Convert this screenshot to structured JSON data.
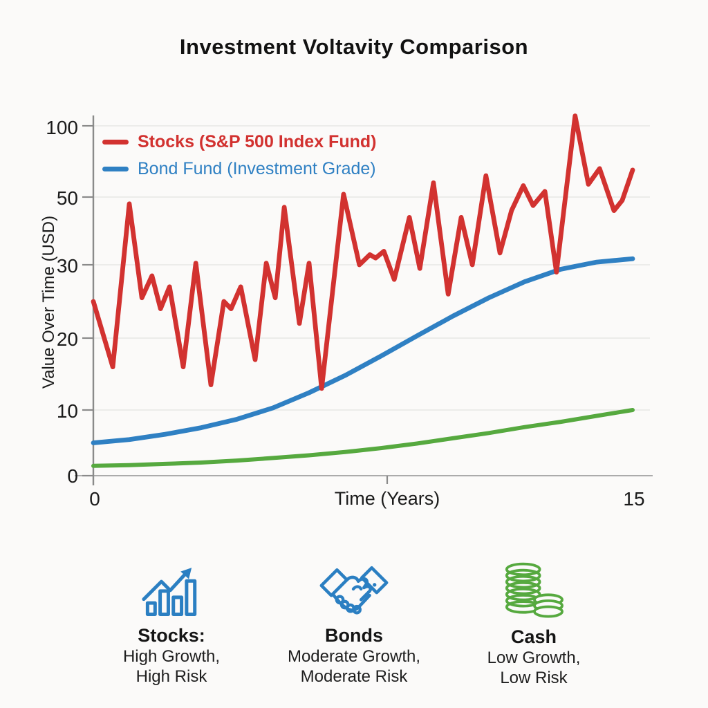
{
  "title": "Investment Voltavity Comparison",
  "chart_data": {
    "type": "line",
    "title": "Investment Voltavity Comparison",
    "xlabel": "Time (Years)",
    "ylabel": "Value Over Time (USD)",
    "xlim": [
      0,
      15
    ],
    "xtick_labels": [
      "0",
      "15"
    ],
    "ytick_values": [
      0,
      10,
      20,
      30,
      50,
      100
    ],
    "ytick_labels": [
      "100",
      "50",
      "30",
      "20",
      "10",
      "0"
    ],
    "axis_note": "y-axis ticks 0,10,20,30,50,100 are drawn at even spacing (non-linear scale as rendered)",
    "grid": true,
    "legend_position": "top-left",
    "legend": [
      "Stocks (S&P 500 Index Fund)",
      "Bond Fund (Investment Grade)"
    ],
    "series": [
      {
        "name": "Stocks (S&P 500 Index Fund)",
        "color": "#d23230",
        "x": [
          0,
          0.54,
          1.0,
          1.35,
          1.63,
          1.87,
          2.12,
          2.5,
          2.85,
          3.27,
          3.63,
          3.83,
          4.1,
          4.5,
          4.81,
          5.06,
          5.31,
          5.73,
          6.0,
          6.35,
          6.96,
          7.4,
          7.69,
          7.85,
          8.08,
          8.37,
          8.79,
          9.08,
          9.46,
          9.87,
          10.23,
          10.54,
          10.92,
          11.31,
          11.63,
          11.96,
          12.23,
          12.56,
          12.88,
          13.4,
          13.77,
          14.08,
          14.48,
          14.71,
          15.0
        ],
        "y": [
          25,
          16,
          48,
          25.5,
          28.5,
          24,
          27,
          16,
          30.5,
          13.5,
          25,
          24,
          27,
          17,
          30.5,
          25.5,
          47,
          22,
          30.5,
          13,
          52,
          30,
          33,
          32,
          34,
          28,
          44,
          29.5,
          60,
          26,
          44,
          30,
          65,
          33.5,
          46,
          58,
          47.5,
          54,
          29,
          107,
          59,
          70,
          46,
          49,
          69
        ]
      },
      {
        "name": "Bond Fund (Investment Grade)",
        "color": "#2f80c3",
        "x": [
          0,
          1,
          2,
          3,
          4,
          5,
          6,
          7,
          8,
          9,
          10,
          11,
          12,
          13,
          14,
          15
        ],
        "y": [
          5.0,
          5.5,
          6.3,
          7.3,
          8.6,
          10.3,
          12.4,
          14.8,
          17.5,
          20.3,
          23.0,
          25.5,
          27.7,
          29.4,
          30.8,
          31.8
        ]
      },
      {
        "name": "Cash (unlabeled green line)",
        "color": "#56a93f",
        "x": [
          0,
          1,
          2,
          3,
          4,
          5,
          6,
          7,
          8,
          9,
          10,
          11,
          12,
          13,
          14,
          15
        ],
        "y": [
          1.5,
          1.6,
          1.8,
          2.0,
          2.3,
          2.7,
          3.1,
          3.6,
          4.2,
          4.9,
          5.7,
          6.5,
          7.4,
          8.2,
          9.1,
          10.0
        ]
      }
    ]
  },
  "cards": [
    {
      "icon": "bar-chart-trend-icon",
      "color": "#2b7fc2",
      "name": "Stocks:",
      "line1": "High Growth,",
      "line2": "High Risk"
    },
    {
      "icon": "handshake-icon",
      "color": "#2b7fc2",
      "name": "Bonds",
      "line1": "Moderate Growth,",
      "line2": "Moderate Risk"
    },
    {
      "icon": "coin-stack-icon",
      "color": "#56a93f",
      "name": "Cash",
      "line1": "Low Growth,",
      "line2": "Low Risk"
    }
  ],
  "colors": {
    "stocks_red": "#d23230",
    "bonds_blue": "#2f80c3",
    "cash_green": "#56a93f",
    "axis_gray": "#8a8a8a",
    "grid_gray": "#e8e8e6",
    "text_black": "#1a1a1a",
    "background": "#fbfaf9"
  }
}
